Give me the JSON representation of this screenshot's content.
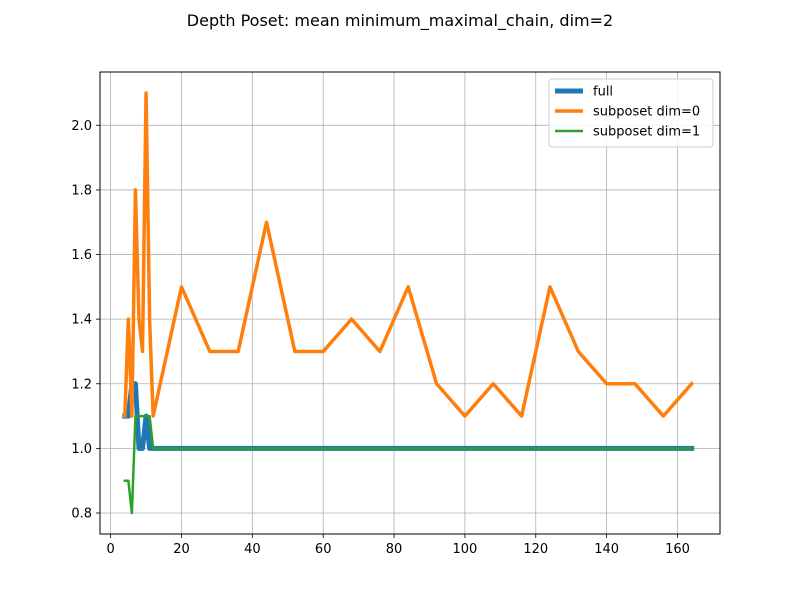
{
  "chart_data": {
    "type": "line",
    "title": "Depth Poset: mean minimum_maximal_chain, dim=2",
    "xlabel": "",
    "ylabel": "",
    "xlim": [
      -3,
      172
    ],
    "ylim": [
      0.735,
      2.165
    ],
    "xticks": [
      0,
      20,
      40,
      60,
      80,
      100,
      120,
      140,
      160
    ],
    "yticks": [
      0.8,
      1.0,
      1.2,
      1.4,
      1.6,
      1.8,
      2.0
    ],
    "xtick_labels": [
      "0",
      "20",
      "40",
      "60",
      "80",
      "100",
      "120",
      "140",
      "160"
    ],
    "ytick_labels": [
      "0.8",
      "1.0",
      "1.2",
      "1.4",
      "1.6",
      "1.8",
      "2.0"
    ],
    "grid": true,
    "legend_position": "top-right",
    "series": [
      {
        "name": "full",
        "color": "#1f77b4",
        "x": [
          4,
          5,
          6,
          7,
          8,
          9,
          10,
          11,
          12,
          16,
          20,
          28,
          36,
          44,
          52,
          60,
          68,
          76,
          84,
          92,
          100,
          108,
          116,
          124,
          132,
          140,
          148,
          156,
          164
        ],
        "y": [
          1.1,
          1.1,
          1.2,
          1.2,
          1.0,
          1.0,
          1.1,
          1.0,
          1.0,
          1.0,
          1.0,
          1.0,
          1.0,
          1.0,
          1.0,
          1.0,
          1.0,
          1.0,
          1.0,
          1.0,
          1.0,
          1.0,
          1.0,
          1.0,
          1.0,
          1.0,
          1.0,
          1.0,
          1.0
        ]
      },
      {
        "name": "subposet dim=0",
        "color": "#ff7f0e",
        "x": [
          4,
          5,
          6,
          7,
          8,
          9,
          10,
          11,
          12,
          16,
          20,
          28,
          36,
          44,
          52,
          60,
          68,
          76,
          84,
          92,
          100,
          108,
          116,
          124,
          132,
          140,
          148,
          156,
          164
        ],
        "y": [
          1.1,
          1.4,
          1.1,
          1.8,
          1.4,
          1.3,
          2.1,
          1.4,
          1.1,
          1.3,
          1.5,
          1.3,
          1.3,
          1.7,
          1.3,
          1.3,
          1.4,
          1.3,
          1.5,
          1.2,
          1.1,
          1.2,
          1.1,
          1.5,
          1.3,
          1.2,
          1.2,
          1.1,
          1.2
        ]
      },
      {
        "name": "subposet dim=1",
        "color": "#2ca02c",
        "x": [
          4,
          5,
          6,
          7,
          8,
          9,
          10,
          11,
          12,
          16,
          20,
          28,
          36,
          44,
          52,
          60,
          68,
          76,
          84,
          92,
          100,
          108,
          116,
          124,
          132,
          140,
          148,
          156,
          164
        ],
        "y": [
          0.9,
          0.9,
          0.8,
          1.1,
          1.1,
          1.1,
          1.1,
          1.1,
          1.0,
          1.0,
          1.0,
          1.0,
          1.0,
          1.0,
          1.0,
          1.0,
          1.0,
          1.0,
          1.0,
          1.0,
          1.0,
          1.0,
          1.0,
          1.0,
          1.0,
          1.0,
          1.0,
          1.0,
          1.0
        ]
      }
    ]
  }
}
